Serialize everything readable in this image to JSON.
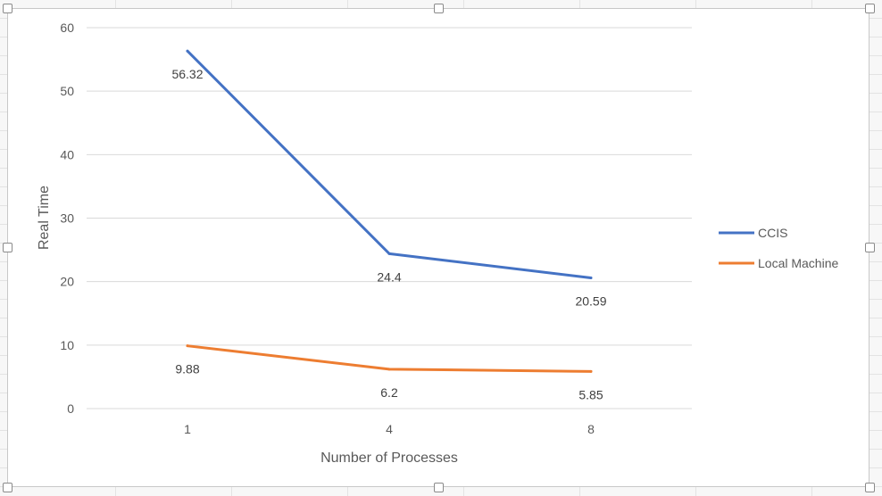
{
  "chart_data": {
    "type": "line",
    "title": "",
    "xlabel": "Number of Processes",
    "ylabel": "Real Time",
    "categories": [
      "1",
      "4",
      "8"
    ],
    "ylim": [
      0,
      60
    ],
    "y_ticks": [
      0,
      10,
      20,
      30,
      40,
      50,
      60
    ],
    "grid": true,
    "legend_position": "right",
    "series": [
      {
        "name": "CCIS",
        "values": [
          56.32,
          24.4,
          20.59
        ],
        "labels": [
          "56.32",
          "24.4",
          "20.59"
        ],
        "color": "#4472C4"
      },
      {
        "name": "Local Machine",
        "values": [
          9.88,
          6.2,
          5.85
        ],
        "labels": [
          "9.88",
          "6.2",
          "5.85"
        ],
        "color": "#ED7D31"
      }
    ]
  }
}
